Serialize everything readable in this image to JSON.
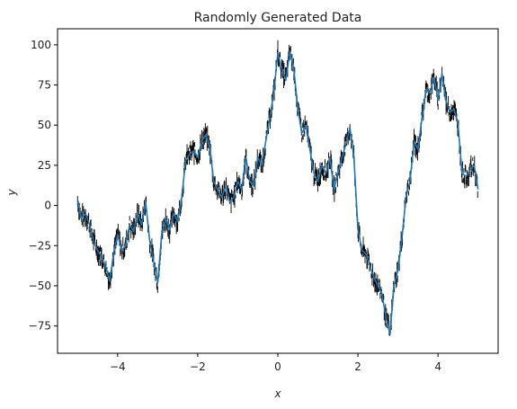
{
  "chart_data": {
    "type": "line",
    "title": "Randomly Generated Data",
    "xlabel": "x",
    "ylabel": "y",
    "xlim": [
      -5.5,
      5.5
    ],
    "ylim": [
      -92,
      110
    ],
    "x_ticks": [
      -4,
      -2,
      0,
      2,
      4
    ],
    "y_ticks": [
      -75,
      -50,
      -25,
      0,
      25,
      50,
      75,
      100
    ],
    "grid": false,
    "legend": "none",
    "colors": {
      "line": "#1f77b4",
      "noise": "#000000"
    },
    "series": [
      {
        "role": "smoothed line",
        "x": [
          -5.0,
          -4.9,
          -4.8,
          -4.7,
          -4.6,
          -4.5,
          -4.4,
          -4.3,
          -4.2,
          -4.1,
          -4.0,
          -3.9,
          -3.8,
          -3.7,
          -3.6,
          -3.5,
          -3.4,
          -3.3,
          -3.2,
          -3.1,
          -3.0,
          -2.9,
          -2.8,
          -2.7,
          -2.6,
          -2.5,
          -2.4,
          -2.3,
          -2.2,
          -2.1,
          -2.0,
          -1.9,
          -1.8,
          -1.7,
          -1.6,
          -1.5,
          -1.4,
          -1.3,
          -1.2,
          -1.1,
          -1.0,
          -0.9,
          -0.8,
          -0.7,
          -0.6,
          -0.5,
          -0.4,
          -0.3,
          -0.2,
          -0.1,
          0.0,
          0.1,
          0.2,
          0.3,
          0.4,
          0.5,
          0.6,
          0.7,
          0.8,
          0.9,
          1.0,
          1.1,
          1.2,
          1.3,
          1.4,
          1.5,
          1.6,
          1.7,
          1.8,
          1.9,
          2.0,
          2.1,
          2.2,
          2.3,
          2.4,
          2.5,
          2.6,
          2.7,
          2.8,
          2.9,
          3.0,
          3.1,
          3.2,
          3.3,
          3.4,
          3.5,
          3.6,
          3.7,
          3.8,
          3.9,
          4.0,
          4.1,
          4.2,
          4.3,
          4.4,
          4.5,
          4.6,
          4.7,
          4.8,
          4.9,
          5.0
        ],
        "values": [
          3,
          -8,
          -5,
          -12,
          -22,
          -28,
          -32,
          -38,
          -47,
          -30,
          -18,
          -28,
          -25,
          -12,
          -16,
          -5,
          -12,
          2,
          -22,
          -35,
          -48,
          -18,
          -8,
          -15,
          -5,
          -10,
          5,
          28,
          32,
          34,
          30,
          40,
          44,
          36,
          15,
          10,
          5,
          12,
          2,
          5,
          15,
          10,
          30,
          15,
          12,
          30,
          25,
          40,
          55,
          70,
          95,
          85,
          78,
          96,
          85,
          60,
          45,
          50,
          35,
          20,
          15,
          25,
          20,
          30,
          10,
          20,
          30,
          38,
          48,
          30,
          -15,
          -28,
          -30,
          -38,
          -45,
          -50,
          -55,
          -70,
          -80,
          -50,
          -40,
          -20,
          5,
          15,
          40,
          35,
          55,
          72,
          70,
          80,
          66,
          82,
          65,
          58,
          60,
          50,
          20,
          18,
          22,
          25,
          10
        ]
      }
    ]
  }
}
